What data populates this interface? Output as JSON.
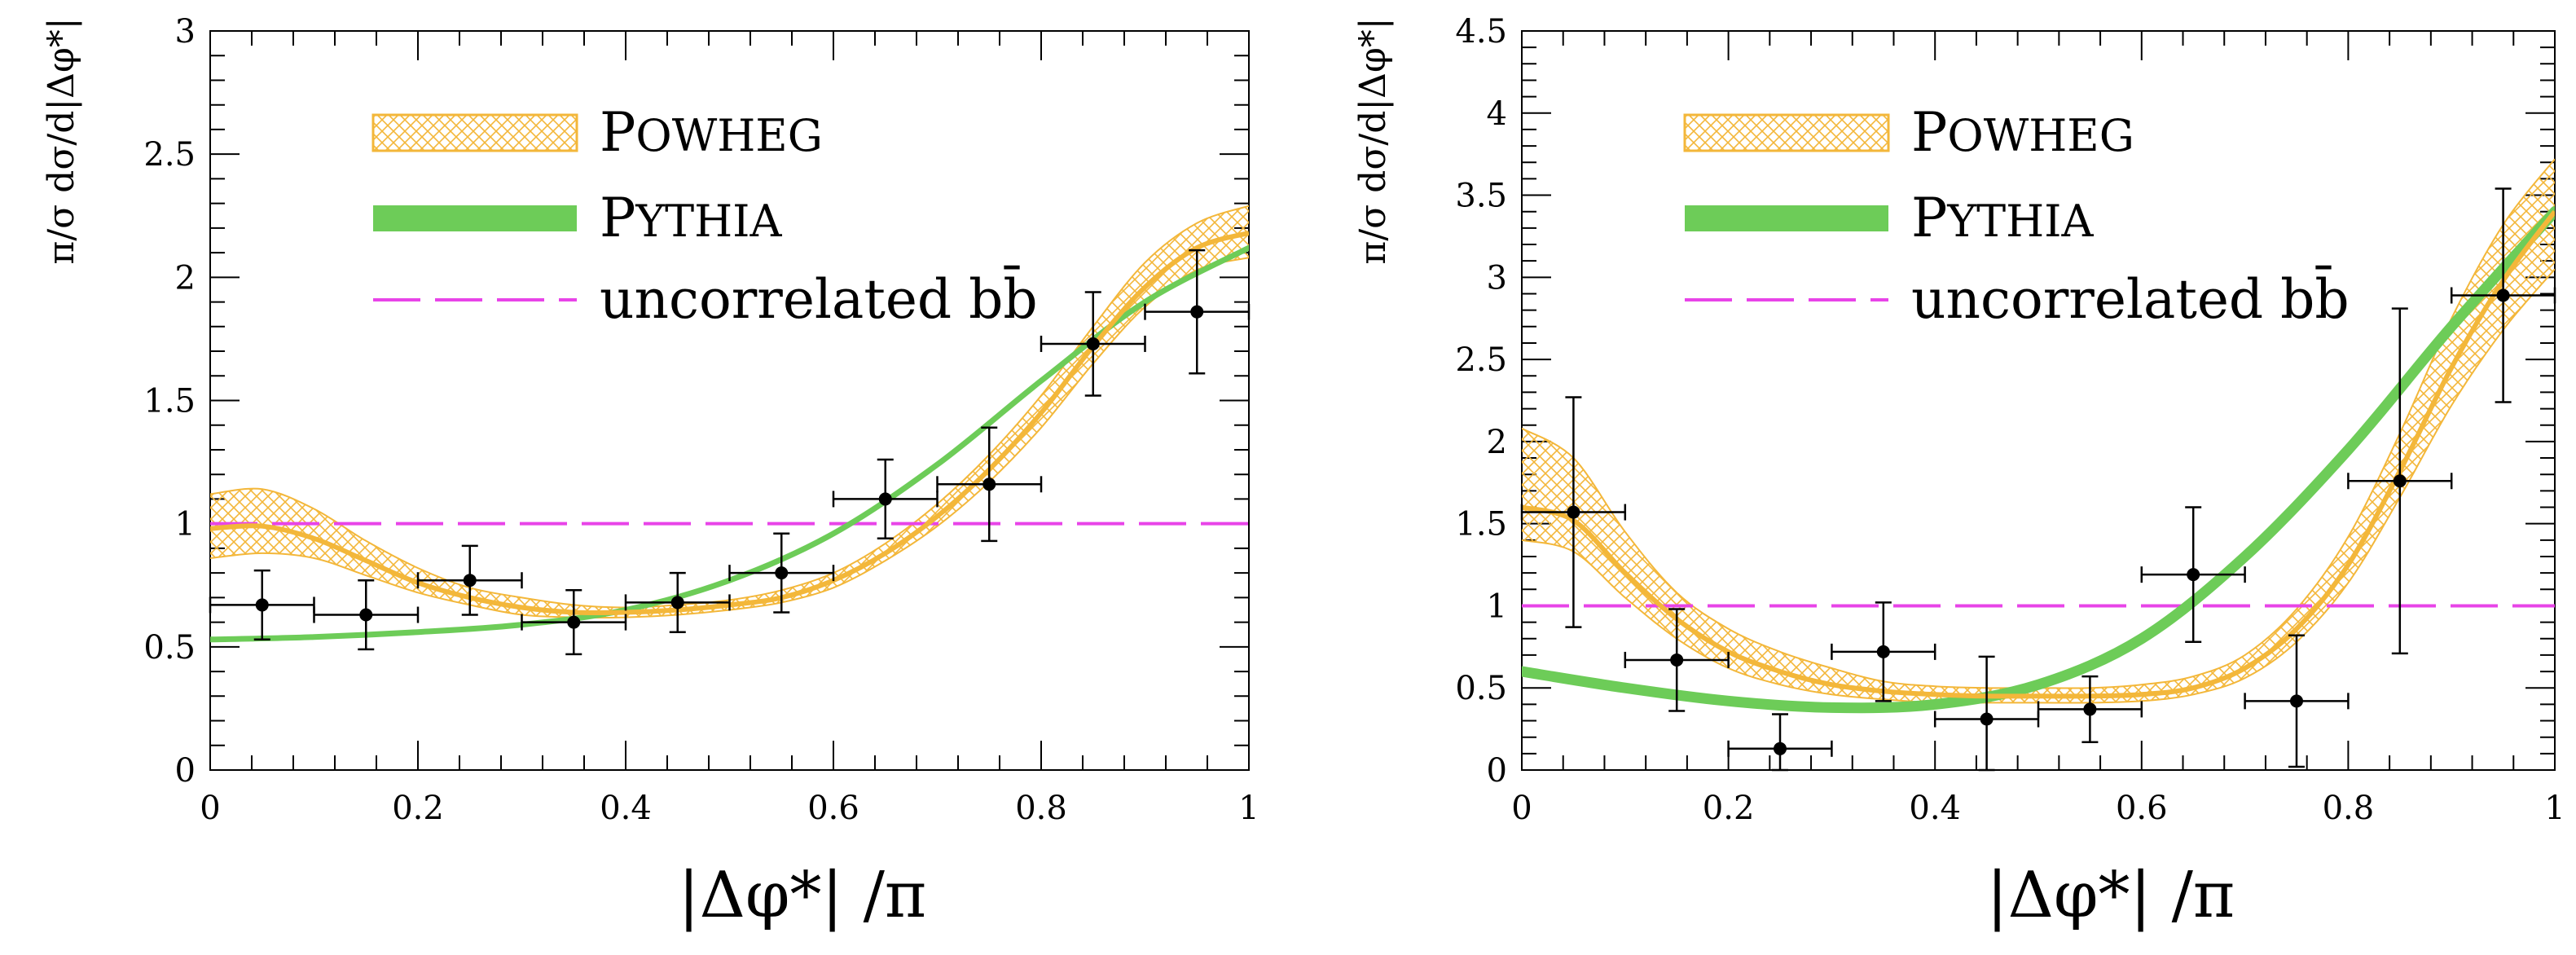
{
  "colors": {
    "powheg": "#f3b73a",
    "powheg_band": "#f6d08a",
    "pythia": "#6dcc58",
    "uncorrelated": "#e844e8",
    "data": "#000000"
  },
  "chart_data": [
    {
      "type": "line",
      "xlabel": "|Δφ*| /π",
      "ylabel": "π/σ dσ/d|Δφ*|",
      "xlim": [
        0,
        1
      ],
      "ylim": [
        0,
        3
      ],
      "xticks": [
        "0",
        "0.2",
        "0.4",
        "0.6",
        "0.8",
        "1"
      ],
      "yticks": [
        "0",
        "0.5",
        "1",
        "1.5",
        "2",
        "2.5",
        "3"
      ],
      "legend": {
        "position": "top-left",
        "entries": [
          {
            "id": "powheg",
            "label": "Powheg"
          },
          {
            "id": "pythia",
            "label": "Pythia"
          },
          {
            "id": "uncorrelated",
            "label": "uncorrelated bb̄"
          }
        ]
      },
      "powheg": {
        "x": [
          0,
          0.05,
          0.1,
          0.15,
          0.2,
          0.25,
          0.3,
          0.35,
          0.4,
          0.45,
          0.5,
          0.55,
          0.6,
          0.65,
          0.7,
          0.75,
          0.8,
          0.85,
          0.9,
          0.95,
          1.0
        ],
        "y": [
          0.98,
          0.99,
          0.94,
          0.85,
          0.76,
          0.7,
          0.66,
          0.64,
          0.64,
          0.65,
          0.67,
          0.7,
          0.77,
          0.88,
          1.03,
          1.22,
          1.45,
          1.72,
          1.96,
          2.12,
          2.18
        ],
        "band_lo": [
          0.86,
          0.88,
          0.86,
          0.79,
          0.72,
          0.67,
          0.63,
          0.62,
          0.62,
          0.63,
          0.65,
          0.68,
          0.74,
          0.85,
          0.99,
          1.17,
          1.39,
          1.65,
          1.88,
          2.03,
          2.08
        ],
        "band_hi": [
          1.12,
          1.14,
          1.06,
          0.93,
          0.82,
          0.74,
          0.7,
          0.67,
          0.66,
          0.67,
          0.69,
          0.73,
          0.8,
          0.92,
          1.08,
          1.28,
          1.52,
          1.8,
          2.06,
          2.22,
          2.29
        ]
      },
      "pythia": {
        "x": [
          0,
          0.1,
          0.2,
          0.3,
          0.4,
          0.5,
          0.6,
          0.7,
          0.8,
          0.9,
          1.0
        ],
        "y": [
          0.53,
          0.54,
          0.56,
          0.59,
          0.65,
          0.77,
          0.96,
          1.24,
          1.58,
          1.9,
          2.12
        ]
      },
      "uncorrelated": {
        "x": [
          0,
          1
        ],
        "y": [
          1,
          1
        ]
      },
      "data_points": {
        "x": [
          0.05,
          0.15,
          0.25,
          0.35,
          0.45,
          0.55,
          0.65,
          0.75,
          0.85,
          0.95
        ],
        "y": [
          0.67,
          0.63,
          0.77,
          0.6,
          0.68,
          0.8,
          1.1,
          1.16,
          1.73,
          1.86
        ],
        "xerr": 0.05,
        "yerr": [
          0.14,
          0.14,
          0.14,
          0.13,
          0.12,
          0.16,
          0.16,
          0.23,
          0.21,
          0.25
        ]
      }
    },
    {
      "type": "line",
      "xlabel": "|Δφ*| /π",
      "ylabel": "π/σ dσ/d|Δφ*|",
      "xlim": [
        0,
        1
      ],
      "ylim": [
        0,
        4.5
      ],
      "xticks": [
        "0",
        "0.2",
        "0.4",
        "0.6",
        "0.8",
        "1"
      ],
      "yticks": [
        "0",
        "0.5",
        "1",
        "1.5",
        "2",
        "2.5",
        "3",
        "3.5",
        "4",
        "4.5"
      ],
      "legend": {
        "position": "top-left",
        "entries": [
          {
            "id": "powheg",
            "label": "Powheg"
          },
          {
            "id": "pythia",
            "label": "Pythia"
          },
          {
            "id": "uncorrelated",
            "label": "uncorrelated bb̄"
          }
        ]
      },
      "powheg": {
        "x": [
          0,
          0.05,
          0.1,
          0.15,
          0.2,
          0.25,
          0.3,
          0.35,
          0.4,
          0.45,
          0.5,
          0.55,
          0.6,
          0.65,
          0.7,
          0.75,
          0.8,
          0.85,
          0.9,
          0.95,
          1.0
        ],
        "y": [
          1.6,
          1.52,
          1.2,
          0.92,
          0.72,
          0.6,
          0.52,
          0.48,
          0.46,
          0.45,
          0.45,
          0.45,
          0.46,
          0.5,
          0.62,
          0.86,
          1.25,
          1.82,
          2.45,
          2.98,
          3.4
        ],
        "band_lo": [
          1.4,
          1.33,
          1.05,
          0.8,
          0.62,
          0.52,
          0.46,
          0.43,
          0.41,
          0.41,
          0.41,
          0.41,
          0.42,
          0.46,
          0.56,
          0.78,
          1.14,
          1.66,
          2.22,
          2.68,
          3.05
        ],
        "band_hi": [
          2.08,
          1.9,
          1.45,
          1.08,
          0.86,
          0.72,
          0.62,
          0.54,
          0.51,
          0.5,
          0.5,
          0.5,
          0.52,
          0.57,
          0.7,
          0.98,
          1.42,
          2.05,
          2.75,
          3.32,
          3.72
        ]
      },
      "pythia": {
        "x": [
          0,
          0.1,
          0.2,
          0.3,
          0.4,
          0.5,
          0.6,
          0.7,
          0.8,
          0.9,
          1.0
        ],
        "y": [
          0.6,
          0.5,
          0.42,
          0.38,
          0.4,
          0.52,
          0.8,
          1.3,
          1.95,
          2.7,
          3.4
        ]
      },
      "uncorrelated": {
        "x": [
          0,
          1
        ],
        "y": [
          1,
          1
        ]
      },
      "data_points": {
        "x": [
          0.05,
          0.15,
          0.25,
          0.35,
          0.45,
          0.55,
          0.65,
          0.75,
          0.85,
          0.95
        ],
        "y": [
          1.57,
          0.67,
          0.13,
          0.72,
          0.31,
          0.37,
          1.19,
          0.42,
          1.76,
          2.89
        ],
        "xerr": 0.05,
        "yerr": [
          0.7,
          0.31,
          0.21,
          0.3,
          0.38,
          0.2,
          0.41,
          0.4,
          1.05,
          0.65
        ]
      }
    }
  ]
}
